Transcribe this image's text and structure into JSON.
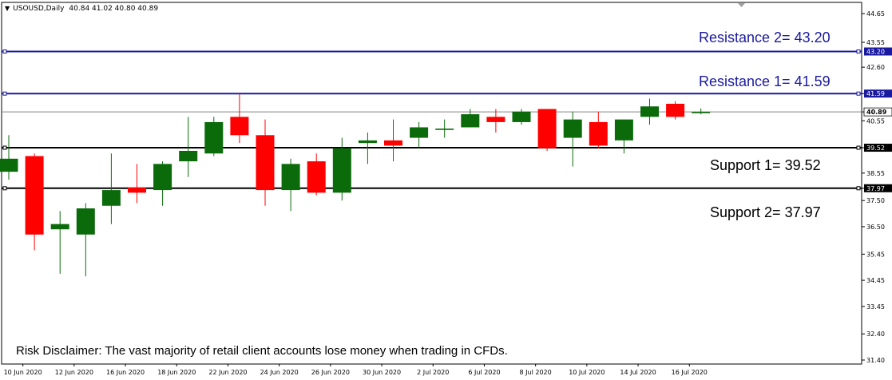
{
  "header": {
    "symbol": "USOUSD,Daily",
    "ohlc": "40.84 41.02 40.80 40.89"
  },
  "disclaimer": "Risk Disclaimer: The vast majority of retail client accounts lose money when trading in CFDs.",
  "annotations": {
    "resistance_2": "Resistance 2= 43.20",
    "resistance_1": "Resistance 1= 41.59",
    "support_1": "Support 1= 39.52",
    "support_2": "Support 2= 37.97"
  },
  "colors": {
    "bull": "#0b6b0b",
    "bear": "#ff0000",
    "resistance": "#1a1aa0",
    "support": "#000000",
    "current": "#808080"
  },
  "chart_data": {
    "type": "candlestick",
    "title": "USOUSD,Daily",
    "ylim": [
      31.4,
      44.65
    ],
    "y_ticks": [
      "44.65",
      "43.55",
      "42.60",
      "41.59",
      "40.89",
      "40.55",
      "39.52",
      "38.55",
      "37.97",
      "37.50",
      "36.50",
      "35.45",
      "34.45",
      "33.45",
      "32.40",
      "31.40"
    ],
    "x_tick_labels": [
      "10 Jun 2020",
      "12 Jun 2020",
      "16 Jun 2020",
      "18 Jun 2020",
      "22 Jun 2020",
      "24 Jun 2020",
      "26 Jun 2020",
      "30 Jun 2020",
      "2 Jul 2020",
      "6 Jul 2020",
      "8 Jul 2020",
      "10 Jul 2020",
      "14 Jul 2020",
      "16 Jul 2020"
    ],
    "levels": [
      {
        "name": "Resistance 2",
        "value": 43.2,
        "label": "43.20"
      },
      {
        "name": "Resistance 1",
        "value": 41.59,
        "label": "41.59"
      },
      {
        "name": "Support 1",
        "value": 39.52,
        "label": "39.52"
      },
      {
        "name": "Support 2",
        "value": 37.97,
        "label": "37.97"
      }
    ],
    "current_price": {
      "value": 40.89,
      "label": "40.89"
    },
    "candles": [
      {
        "o": 38.6,
        "h": 40.0,
        "l": 38.3,
        "c": 39.1
      },
      {
        "o": 39.2,
        "h": 39.3,
        "l": 35.6,
        "c": 36.2
      },
      {
        "o": 36.4,
        "h": 37.1,
        "l": 34.7,
        "c": 36.6
      },
      {
        "o": 36.2,
        "h": 37.4,
        "l": 34.6,
        "c": 37.2
      },
      {
        "o": 37.3,
        "h": 39.3,
        "l": 36.6,
        "c": 37.9
      },
      {
        "o": 38.0,
        "h": 38.9,
        "l": 37.4,
        "c": 37.8
      },
      {
        "o": 37.9,
        "h": 39.0,
        "l": 37.3,
        "c": 38.9
      },
      {
        "o": 39.0,
        "h": 40.7,
        "l": 38.4,
        "c": 39.4
      },
      {
        "o": 39.3,
        "h": 40.7,
        "l": 39.2,
        "c": 40.5
      },
      {
        "o": 40.7,
        "h": 41.6,
        "l": 39.7,
        "c": 40.0
      },
      {
        "o": 40.0,
        "h": 40.6,
        "l": 37.3,
        "c": 37.9
      },
      {
        "o": 37.9,
        "h": 39.1,
        "l": 37.1,
        "c": 38.9
      },
      {
        "o": 39.0,
        "h": 39.3,
        "l": 37.7,
        "c": 37.8
      },
      {
        "o": 37.8,
        "h": 39.9,
        "l": 37.5,
        "c": 39.5
      },
      {
        "o": 39.7,
        "h": 40.1,
        "l": 38.9,
        "c": 39.8
      },
      {
        "o": 39.8,
        "h": 40.6,
        "l": 39.0,
        "c": 39.6
      },
      {
        "o": 39.9,
        "h": 40.5,
        "l": 39.5,
        "c": 40.3
      },
      {
        "o": 40.2,
        "h": 40.6,
        "l": 39.9,
        "c": 40.25
      },
      {
        "o": 40.3,
        "h": 41.0,
        "l": 40.3,
        "c": 40.8
      },
      {
        "o": 40.7,
        "h": 41.0,
        "l": 40.1,
        "c": 40.5
      },
      {
        "o": 40.5,
        "h": 41.0,
        "l": 40.4,
        "c": 40.9
      },
      {
        "o": 41.0,
        "h": 41.0,
        "l": 39.4,
        "c": 39.5
      },
      {
        "o": 39.9,
        "h": 40.9,
        "l": 38.8,
        "c": 40.6
      },
      {
        "o": 40.5,
        "h": 40.9,
        "l": 39.5,
        "c": 39.6
      },
      {
        "o": 39.8,
        "h": 40.6,
        "l": 39.3,
        "c": 40.6
      },
      {
        "o": 40.7,
        "h": 41.4,
        "l": 40.4,
        "c": 41.1
      },
      {
        "o": 41.2,
        "h": 41.3,
        "l": 40.6,
        "c": 40.7
      },
      {
        "o": 40.84,
        "h": 41.02,
        "l": 40.8,
        "c": 40.89
      }
    ]
  }
}
